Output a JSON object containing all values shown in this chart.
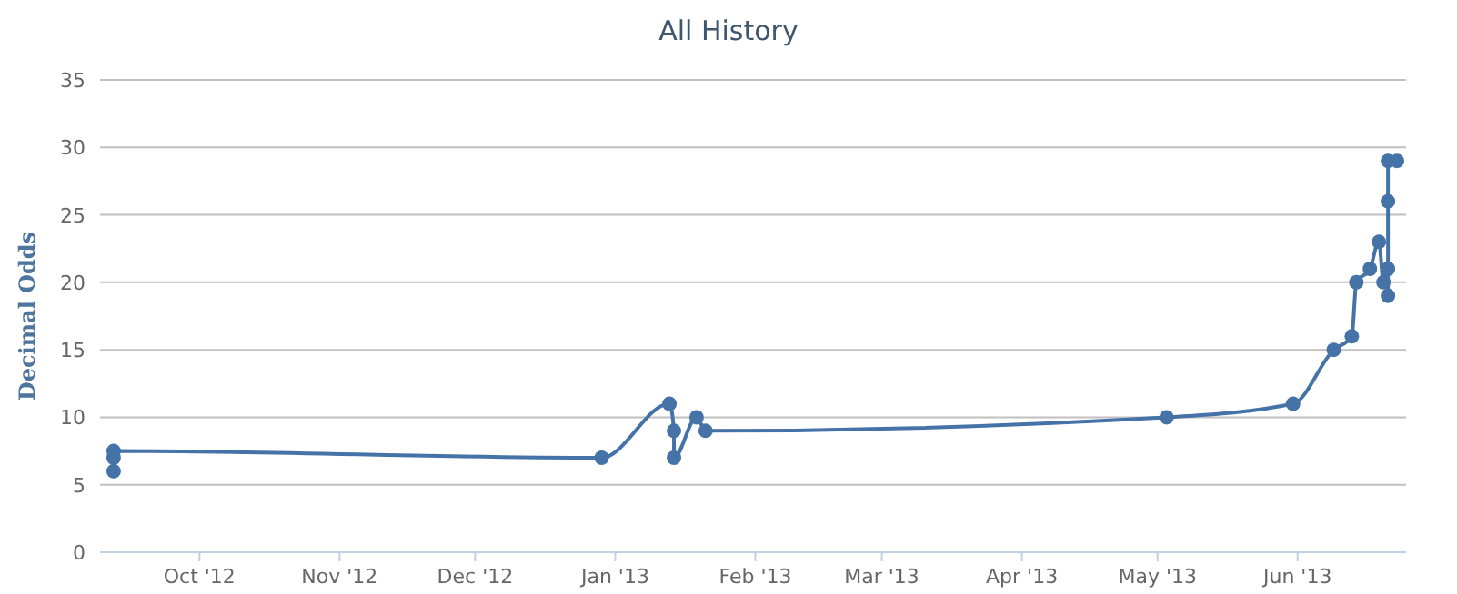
{
  "chart_data": {
    "type": "line",
    "title": "All History",
    "ylabel": "Decimal Odds",
    "x": [
      "2012-09-12",
      "2012-09-12",
      "2012-09-12",
      "2012-12-29",
      "2013-01-13",
      "2013-01-14",
      "2013-01-14",
      "2013-01-19",
      "2013-01-21",
      "2013-05-03",
      "2013-05-31",
      "2013-06-09",
      "2013-06-13",
      "2013-06-14",
      "2013-06-17",
      "2013-06-19",
      "2013-06-20",
      "2013-06-21",
      "2013-06-21",
      "2013-06-21",
      "2013-06-21",
      "2013-06-23"
    ],
    "series": [
      {
        "color": "#4572a7",
        "values": [
          6,
          7,
          7.5,
          7,
          11,
          9,
          7,
          10,
          9,
          10,
          11,
          15,
          16,
          20,
          21,
          23,
          20,
          21,
          19,
          26,
          29,
          29
        ]
      }
    ],
    "xlim": [
      "2012-09-09",
      "2013-06-25"
    ],
    "xticks": [
      {
        "value": "2012-10-01",
        "label": "Oct '12"
      },
      {
        "value": "2012-11-01",
        "label": "Nov '12"
      },
      {
        "value": "2012-12-01",
        "label": "Dec '12"
      },
      {
        "value": "2013-01-01",
        "label": "Jan '13"
      },
      {
        "value": "2013-02-01",
        "label": "Feb '13"
      },
      {
        "value": "2013-03-01",
        "label": "Mar '13"
      },
      {
        "value": "2013-04-01",
        "label": "Apr '13"
      },
      {
        "value": "2013-05-01",
        "label": "May '13"
      },
      {
        "value": "2013-06-01",
        "label": "Jun '13"
      }
    ],
    "ylim": [
      0,
      35
    ],
    "yticks": [
      0,
      5,
      10,
      15,
      20,
      25,
      30,
      35
    ],
    "grid": "y",
    "marker": "circle",
    "line_style": "solid"
  }
}
